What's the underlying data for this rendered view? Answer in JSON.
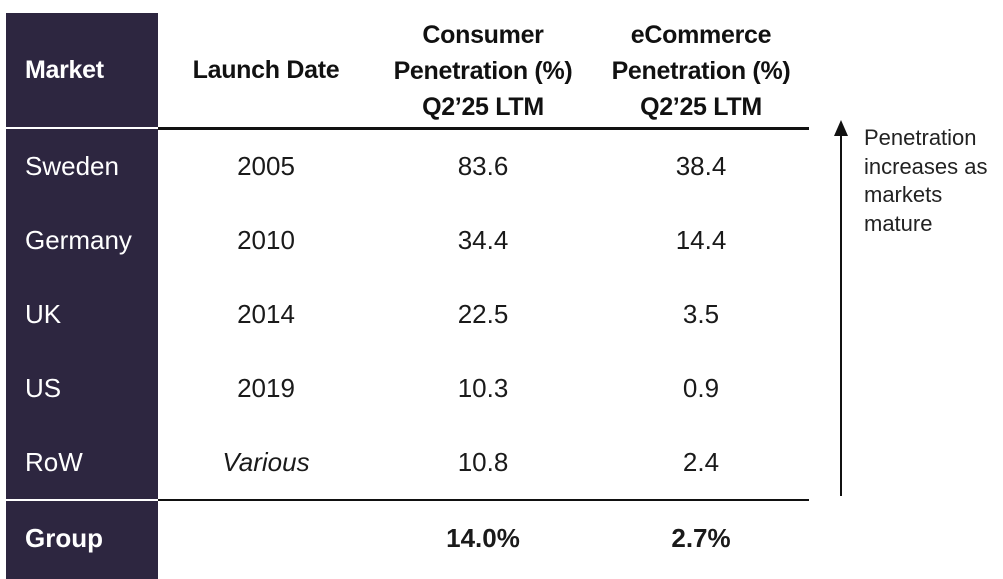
{
  "header": {
    "market": "Market",
    "launch_date": "Launch Date",
    "consumer": [
      "Consumer",
      "Penetration (%)",
      "Q2’25 LTM"
    ],
    "ecommerce": [
      "eCommerce",
      "Penetration (%)",
      "Q2’25 LTM"
    ]
  },
  "rows": [
    {
      "market": "Sweden",
      "launch": "2005",
      "consumer": "83.6",
      "ecommerce": "38.4"
    },
    {
      "market": "Germany",
      "launch": "2010",
      "consumer": "34.4",
      "ecommerce": "14.4"
    },
    {
      "market": "UK",
      "launch": "2014",
      "consumer": "22.5",
      "ecommerce": "3.5"
    },
    {
      "market": "US",
      "launch": "2019",
      "consumer": "10.3",
      "ecommerce": "0.9"
    },
    {
      "market": "RoW",
      "launch": "Various",
      "consumer": "10.8",
      "ecommerce": "2.4"
    }
  ],
  "group": {
    "label": "Group",
    "launch": "",
    "consumer": "14.0%",
    "ecommerce": "2.7%"
  },
  "annotation": "Penetration increases as markets mature",
  "colors": {
    "market_column": "#2d2640",
    "rule": "#111111"
  }
}
